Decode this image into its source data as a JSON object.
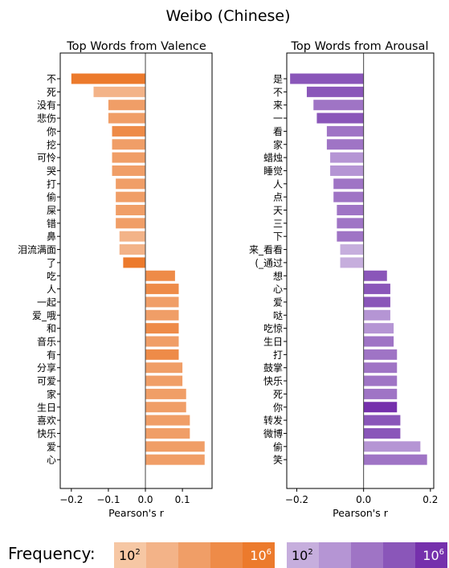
{
  "suptitle": "Weibo (Chinese)",
  "frequency_label": "Frequency:",
  "colorbars": [
    {
      "name": "valence-frequency",
      "colors": [
        "#f6c7a4",
        "#f3b388",
        "#f09e67",
        "#ee8b48",
        "#ec7a2c"
      ],
      "low_base": "10",
      "low_exp": "2",
      "high_base": "10",
      "high_exp": "6"
    },
    {
      "name": "arousal-frequency",
      "colors": [
        "#c6aedd",
        "#b595d4",
        "#9f74c5",
        "#8a56b9",
        "#7530ac"
      ],
      "low_base": "10",
      "low_exp": "2",
      "high_base": "10",
      "high_exp": "6"
    }
  ],
  "chart_data": [
    {
      "type": "bar",
      "orientation": "horizontal",
      "title": "Top Words from Valence",
      "xlabel": "Pearson's r",
      "ylabel": "",
      "xlim": [
        -0.23,
        0.18
      ],
      "xticks": [
        -0.2,
        -0.1,
        0.0,
        0.1
      ],
      "xtick_labels": [
        "−0.2",
        "−0.1",
        "0.0",
        "0.1"
      ],
      "zero_line": true,
      "categories": [
        "不",
        "死",
        "没有",
        "悲伤",
        "你",
        "挖",
        "可怜",
        "哭",
        "打",
        "偷",
        "屎",
        "错",
        "鼻",
        "泪流满面",
        "了",
        "吃",
        "人",
        "一起",
        "爱_哦",
        "和",
        "音乐",
        "有",
        "分享",
        "可爱",
        "家",
        "生日",
        "喜欢",
        "快乐",
        "爱",
        "心"
      ],
      "values": [
        -0.2,
        -0.14,
        -0.1,
        -0.1,
        -0.09,
        -0.09,
        -0.09,
        -0.09,
        -0.08,
        -0.08,
        -0.08,
        -0.08,
        -0.07,
        -0.07,
        -0.06,
        0.08,
        0.09,
        0.09,
        0.09,
        0.09,
        0.09,
        0.09,
        0.1,
        0.1,
        0.11,
        0.11,
        0.12,
        0.12,
        0.16,
        0.16
      ],
      "colors": [
        "#ec7a2c",
        "#f3b388",
        "#f09e67",
        "#f09e67",
        "#ee8b48",
        "#f09e67",
        "#f09e67",
        "#f09e67",
        "#f09e67",
        "#f09e67",
        "#f09e67",
        "#f09e67",
        "#f3b388",
        "#f3b388",
        "#ec7a2c",
        "#ee8b48",
        "#ee8b48",
        "#f09e67",
        "#f09e67",
        "#ee8b48",
        "#f09e67",
        "#ee8b48",
        "#f09e67",
        "#f09e67",
        "#f09e67",
        "#f09e67",
        "#f09e67",
        "#f09e67",
        "#f09e67",
        "#f09e67"
      ]
    },
    {
      "type": "bar",
      "orientation": "horizontal",
      "title": "Top Words from Arousal",
      "xlabel": "Pearson's r",
      "ylabel": "",
      "xlim": [
        -0.23,
        0.21
      ],
      "xticks": [
        -0.2,
        0.0,
        0.2
      ],
      "xtick_labels": [
        "−0.2",
        "0.0",
        "0.2"
      ],
      "zero_line": true,
      "categories": [
        "是",
        "不",
        "来",
        "一",
        "看",
        "家",
        "蜡烛",
        "睡觉",
        "人",
        "点",
        "天",
        "三",
        "下",
        "来_看看",
        "(_通过",
        "想",
        "心",
        "爱",
        "哒",
        "吃惊",
        "生日",
        "打",
        "鼓掌",
        "快乐",
        "死",
        "你",
        "转发",
        "微博",
        "偷",
        "笑"
      ],
      "values": [
        -0.22,
        -0.17,
        -0.15,
        -0.14,
        -0.11,
        -0.11,
        -0.1,
        -0.1,
        -0.09,
        -0.09,
        -0.08,
        -0.08,
        -0.08,
        -0.07,
        -0.07,
        0.07,
        0.08,
        0.08,
        0.08,
        0.09,
        0.09,
        0.1,
        0.1,
        0.1,
        0.1,
        0.1,
        0.11,
        0.11,
        0.17,
        0.19
      ],
      "colors": [
        "#8a56b9",
        "#8a56b9",
        "#9f74c5",
        "#8a56b9",
        "#9f74c5",
        "#9f74c5",
        "#b595d4",
        "#b595d4",
        "#9f74c5",
        "#9f74c5",
        "#9f74c5",
        "#9f74c5",
        "#9f74c5",
        "#c6aedd",
        "#c6aedd",
        "#8a56b9",
        "#8a56b9",
        "#8a56b9",
        "#b595d4",
        "#b595d4",
        "#9f74c5",
        "#9f74c5",
        "#9f74c5",
        "#9f74c5",
        "#9f74c5",
        "#7530ac",
        "#8a56b9",
        "#8a56b9",
        "#b595d4",
        "#9f74c5"
      ]
    }
  ]
}
